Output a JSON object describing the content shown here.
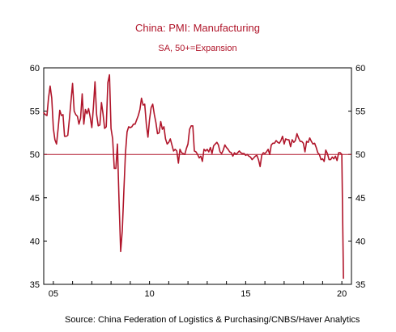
{
  "chart_data": {
    "type": "line",
    "title": "China: PMI: Manufacturing",
    "subtitle": "SA, 50+=Expansion",
    "source": "Source:  China Federation of Logistics & Purchasing/CNBS/Haver Analytics",
    "x_tick_labels": [
      "05",
      "10",
      "15",
      "20"
    ],
    "x_tick_years": [
      2005,
      2010,
      2015,
      2020
    ],
    "y_tick_labels": [
      "35",
      "40",
      "45",
      "50",
      "55",
      "60"
    ],
    "y_ticks": [
      35,
      40,
      45,
      50,
      55,
      60
    ],
    "xlim": [
      2004.5,
      2020.5
    ],
    "ylim": [
      35,
      60
    ],
    "reference_line": 50,
    "grid": false,
    "legend": false,
    "colors": {
      "series": "#b0152a",
      "reference": "#b0152a",
      "axis": "#000000",
      "title": "#b0152a",
      "text": "#000000"
    },
    "series": [
      {
        "x": [
          2004.5,
          2004.583,
          2004.667,
          2004.75,
          2004.833,
          2004.917,
          2005.0,
          2005.083,
          2005.167,
          2005.25,
          2005.333,
          2005.417,
          2005.5,
          2005.583,
          2005.667,
          2005.75,
          2005.833,
          2005.917,
          2006.0,
          2006.083,
          2006.167,
          2006.25,
          2006.333,
          2006.417,
          2006.5,
          2006.583,
          2006.667,
          2006.75,
          2006.833,
          2006.917,
          2007.0,
          2007.083,
          2007.167,
          2007.25,
          2007.333,
          2007.417,
          2007.5,
          2007.583,
          2007.667,
          2007.75,
          2007.833,
          2007.917,
          2008.0,
          2008.083,
          2008.167,
          2008.25,
          2008.333,
          2008.417,
          2008.5,
          2008.583,
          2008.667,
          2008.75,
          2008.833,
          2008.917,
          2009.0,
          2009.083,
          2009.167,
          2009.25,
          2009.333,
          2009.417,
          2009.5,
          2009.583,
          2009.667,
          2009.75,
          2009.833,
          2009.917,
          2010.0,
          2010.083,
          2010.167,
          2010.25,
          2010.333,
          2010.417,
          2010.5,
          2010.583,
          2010.667,
          2010.75,
          2010.833,
          2010.917,
          2011.0,
          2011.083,
          2011.167,
          2011.25,
          2011.333,
          2011.417,
          2011.5,
          2011.583,
          2011.667,
          2011.75,
          2011.833,
          2011.917,
          2012.0,
          2012.083,
          2012.167,
          2012.25,
          2012.333,
          2012.417,
          2012.5,
          2012.583,
          2012.667,
          2012.75,
          2012.833,
          2012.917,
          2013.0,
          2013.083,
          2013.167,
          2013.25,
          2013.333,
          2013.417,
          2013.5,
          2013.583,
          2013.667,
          2013.75,
          2013.833,
          2013.917,
          2014.0,
          2014.083,
          2014.167,
          2014.25,
          2014.333,
          2014.417,
          2014.5,
          2014.583,
          2014.667,
          2014.75,
          2014.833,
          2014.917,
          2015.0,
          2015.083,
          2015.167,
          2015.25,
          2015.333,
          2015.417,
          2015.5,
          2015.583,
          2015.667,
          2015.75,
          2015.833,
          2015.917,
          2016.0,
          2016.083,
          2016.167,
          2016.25,
          2016.333,
          2016.417,
          2016.5,
          2016.583,
          2016.667,
          2016.75,
          2016.833,
          2016.917,
          2017.0,
          2017.083,
          2017.167,
          2017.25,
          2017.333,
          2017.417,
          2017.5,
          2017.583,
          2017.667,
          2017.75,
          2017.833,
          2017.917,
          2018.0,
          2018.083,
          2018.167,
          2018.25,
          2018.333,
          2018.417,
          2018.5,
          2018.583,
          2018.667,
          2018.75,
          2018.833,
          2018.917,
          2019.0,
          2019.083,
          2019.167,
          2019.25,
          2019.333,
          2019.417,
          2019.5,
          2019.583,
          2019.667,
          2019.75,
          2019.833,
          2019.917,
          2020.0,
          2020.083
        ],
        "y": [
          54.8,
          54.6,
          54.5,
          56.5,
          57.9,
          56.5,
          53.0,
          51.7,
          51.2,
          53.0,
          55.1,
          54.5,
          54.6,
          52.1,
          52.1,
          52.2,
          54.1,
          56.2,
          58.2,
          55.0,
          54.6,
          54.4,
          53.5,
          54.2,
          57.0,
          53.5,
          55.2,
          54.7,
          55.3,
          54.3,
          53.1,
          55.4,
          58.4,
          54.6,
          53.3,
          53.4,
          56.0,
          54.7,
          53.0,
          53.2,
          58.3,
          59.2,
          53.0,
          51.8,
          48.4,
          48.4,
          51.2,
          44.6,
          38.8,
          41.2,
          45.9,
          50.1,
          52.6,
          53.2,
          53.1,
          53.2,
          53.5,
          53.5,
          54.0,
          54.5,
          55.2,
          56.5,
          55.7,
          55.8,
          53.5,
          52.0,
          54.0,
          55.4,
          55.8,
          54.6,
          53.7,
          52.4,
          52.5,
          53.8,
          52.9,
          53.2,
          51.8,
          51.2,
          51.4,
          51.8,
          51.1,
          50.4,
          50.6,
          50.4,
          49.0,
          50.6,
          50.2,
          50.1,
          50.0,
          50.7,
          51.2,
          52.9,
          53.3,
          53.3,
          50.4,
          50.3,
          50.0,
          49.6,
          49.8,
          49.2,
          50.6,
          50.4,
          50.6,
          50.3,
          50.8,
          50.1,
          51.0,
          51.2,
          51.4,
          51.1,
          50.3,
          50.1,
          50.5,
          51.1,
          50.8,
          50.6,
          50.3,
          50.2,
          49.8,
          50.2,
          50.0,
          50.2,
          50.4,
          50.2,
          50.1,
          50.1,
          49.9,
          50.0,
          49.8,
          49.7,
          49.4,
          49.6,
          49.8,
          49.9,
          49.4,
          48.6,
          49.9,
          50.2,
          50.1,
          50.3,
          50.6,
          50.0,
          51.1,
          51.3,
          51.3,
          51.6,
          51.4,
          51.3,
          51.6,
          52.1,
          51.2,
          51.8,
          51.7,
          51.7,
          50.9,
          51.7,
          51.4,
          51.6,
          52.4,
          51.9,
          51.5,
          51.5,
          51.3,
          50.3,
          51.5,
          51.4,
          51.9,
          51.5,
          51.2,
          51.3,
          50.8,
          50.2,
          50.0,
          49.4,
          49.5,
          49.2,
          50.5,
          50.1,
          49.4,
          49.4,
          49.7,
          49.5,
          49.8,
          49.3,
          50.2,
          50.2,
          50.0,
          35.7
        ]
      }
    ]
  }
}
